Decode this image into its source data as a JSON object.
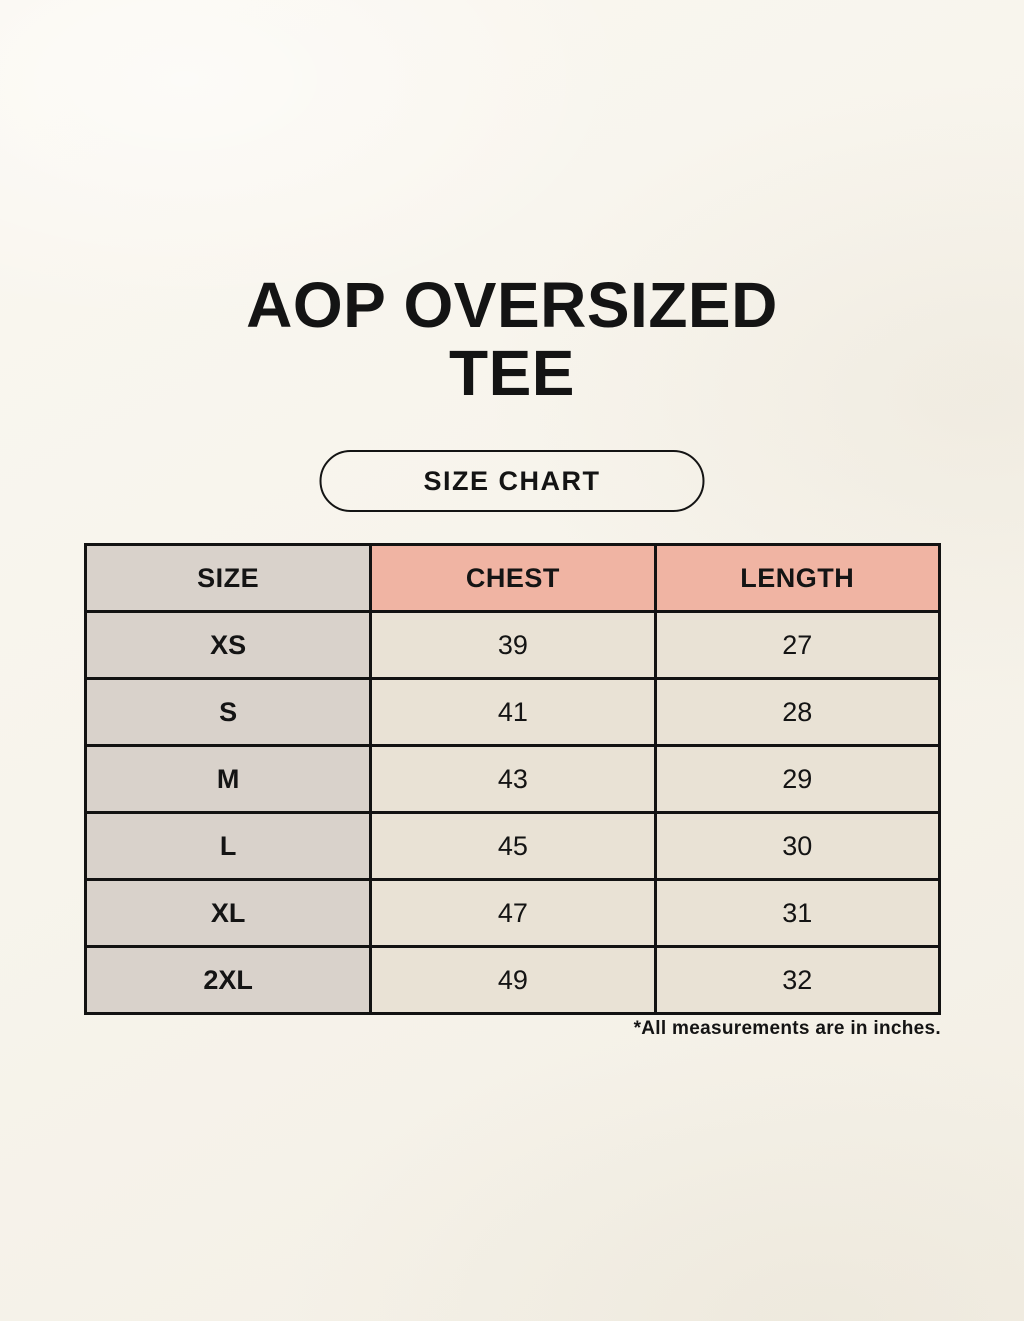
{
  "header": {
    "title_line1": "AOP OVERSIZED",
    "title_line2": "TEE",
    "badge_label": "SIZE CHART"
  },
  "table": {
    "headers": [
      "SIZE",
      "CHEST",
      "LENGTH"
    ],
    "rows": [
      {
        "size": "XS",
        "chest": "39",
        "length": "27"
      },
      {
        "size": "S",
        "chest": "41",
        "length": "28"
      },
      {
        "size": "M",
        "chest": "43",
        "length": "29"
      },
      {
        "size": "L",
        "chest": "45",
        "length": "30"
      },
      {
        "size": "XL",
        "chest": "47",
        "length": "31"
      },
      {
        "size": "2XL",
        "chest": "49",
        "length": "32"
      }
    ]
  },
  "footnote": "*All measurements are in inches.",
  "colors": {
    "background": "#f7f4ec",
    "table_border": "#121212",
    "size_column_bg": "#d9d2cb",
    "measure_header_bg": "#f0b4a3",
    "data_cell_bg": "#e9e2d5",
    "text": "#141414"
  },
  "chart_data": {
    "type": "table",
    "title": "AOP OVERSIZED TEE — SIZE CHART",
    "columns": [
      "SIZE",
      "CHEST",
      "LENGTH"
    ],
    "rows": [
      [
        "XS",
        39,
        27
      ],
      [
        "S",
        41,
        28
      ],
      [
        "M",
        43,
        29
      ],
      [
        "L",
        45,
        30
      ],
      [
        "XL",
        47,
        31
      ],
      [
        "2XL",
        49,
        32
      ]
    ],
    "units": "inches"
  }
}
